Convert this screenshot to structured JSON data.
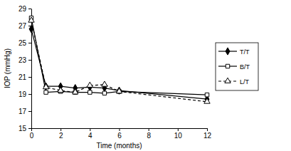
{
  "chart_data": {
    "type": "line",
    "x_label": "Time (months)",
    "y_label": "IOP (mmHg)",
    "x": [
      0,
      1,
      2,
      3,
      4,
      5,
      6,
      12
    ],
    "series": [
      {
        "name": "T/T",
        "color": "#000000",
        "marker": "diamond",
        "line_style": "solid",
        "values": [
          26.6,
          19.9,
          19.9,
          19.7,
          19.8,
          19.7,
          19.4,
          18.4
        ]
      },
      {
        "name": "B/T",
        "color": "#000000",
        "marker": "square-open",
        "line_style": "solid",
        "values": [
          27.9,
          19.2,
          19.3,
          19.2,
          19.2,
          19.1,
          19.3,
          18.9
        ]
      },
      {
        "name": "L/T",
        "color": "#000000",
        "marker": "triangle-open",
        "line_style": "dashed",
        "values": [
          27.6,
          19.8,
          19.4,
          19.2,
          20.0,
          20.1,
          19.3,
          18.1
        ]
      }
    ],
    "xlim": [
      0,
      12
    ],
    "xticks": [
      0,
      2,
      4,
      6,
      8,
      10,
      12
    ],
    "ylim": [
      15,
      29
    ],
    "yticks": [
      15,
      17,
      19,
      21,
      23,
      25,
      27,
      29
    ],
    "legend": "right"
  }
}
